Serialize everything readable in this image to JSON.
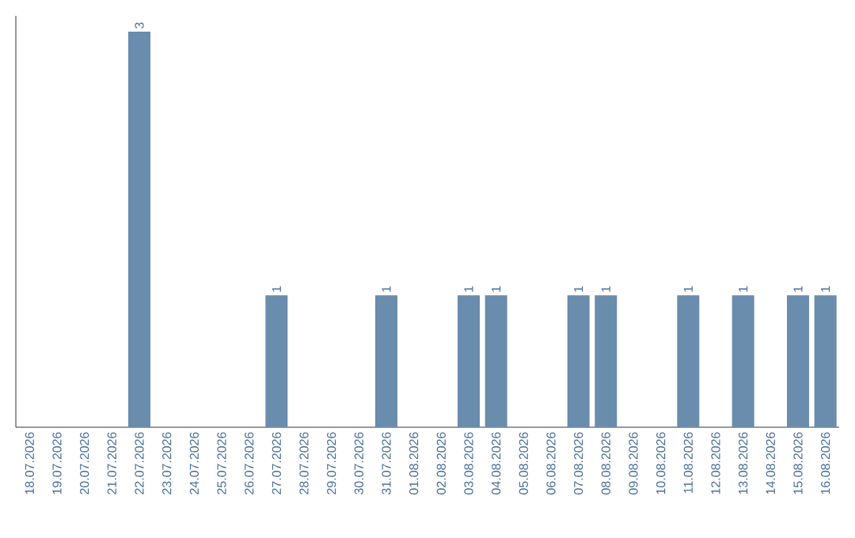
{
  "chart_data": {
    "type": "bar",
    "categories": [
      "18.07.2026",
      "19.07.2026",
      "20.07.2026",
      "21.07.2026",
      "22.07.2026",
      "23.07.2026",
      "24.07.2026",
      "25.07.2026",
      "26.07.2026",
      "27.07.2026",
      "28.07.2026",
      "29.07.2026",
      "30.07.2026",
      "31.07.2026",
      "01.08.2026",
      "02.08.2026",
      "03.08.2026",
      "04.08.2026",
      "05.08.2026",
      "06.08.2026",
      "07.08.2026",
      "08.08.2026",
      "09.08.2026",
      "10.08.2026",
      "11.08.2026",
      "12.08.2026",
      "13.08.2026",
      "14.08.2026",
      "15.08.2026",
      "16.08.2026"
    ],
    "values": [
      0,
      0,
      0,
      0,
      3,
      0,
      0,
      0,
      0,
      1,
      0,
      0,
      0,
      1,
      0,
      0,
      1,
      1,
      0,
      0,
      1,
      1,
      0,
      0,
      1,
      0,
      1,
      0,
      1,
      1
    ],
    "value_labels": [
      null,
      null,
      null,
      null,
      "3",
      null,
      null,
      null,
      null,
      "1",
      null,
      null,
      null,
      "1",
      null,
      null,
      "1",
      "1",
      null,
      null,
      "1",
      "1",
      null,
      null,
      "1",
      null,
      "1",
      null,
      "1",
      "1"
    ],
    "color": "#6a8cad",
    "tick_labels": "x"
  }
}
